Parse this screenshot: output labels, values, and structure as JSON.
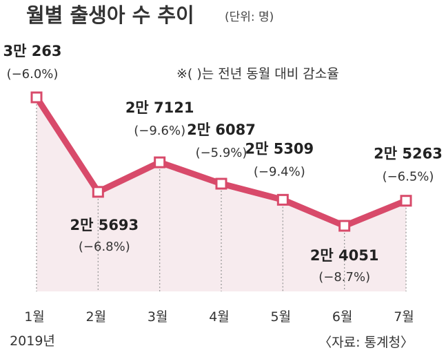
{
  "chart_data": {
    "type": "line",
    "title": "월별 출생아 수 추이",
    "unit_label": "(단위: 명)",
    "note": "※(  )는 전년 동월 대비 감소율",
    "source": "〈자료: 통계청〉",
    "categories": [
      "1월",
      "2월",
      "3월",
      "4월",
      "5월",
      "6월",
      "7월"
    ],
    "year_label": "2019년",
    "values": [
      30263,
      25693,
      27121,
      26087,
      25309,
      24051,
      25263
    ],
    "value_labels": [
      "3만 263",
      "2만 5693",
      "2만 7121",
      "2만 6087",
      "2만 5309",
      "2만 4051",
      "2만 5263"
    ],
    "pct_labels": [
      "(−6.0%)",
      "(−6.8%)",
      "(−9.6%)",
      "(−5.9%)",
      "(−9.4%)",
      "(−8.7%)",
      "(−6.5%)"
    ],
    "colors": {
      "line": "#d84a6a",
      "fill": "#f7ebee",
      "marker_fill": "#ffffff",
      "grid": "#999999"
    }
  }
}
